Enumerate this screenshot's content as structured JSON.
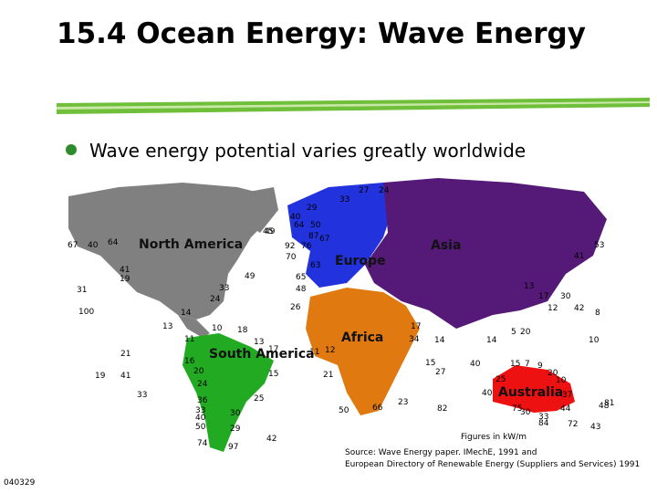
{
  "header": {
    "title": "15.4  Ocean Energy: Wave Energy"
  },
  "bullet": "Wave energy potential varies greatly worldwide",
  "map": {
    "regions": [
      "North America",
      "Europe",
      "Asia",
      "Africa",
      "South America",
      "Australia"
    ],
    "figures": [
      27,
      24,
      33,
      29,
      40,
      64,
      50,
      45,
      87,
      67,
      92,
      76,
      70,
      63,
      65,
      48,
      26,
      67,
      40,
      64,
      49,
      41,
      19,
      49,
      31,
      33,
      24,
      100,
      14,
      13,
      10,
      18,
      11,
      17,
      13,
      21,
      16,
      19,
      41,
      20,
      15,
      24,
      33,
      36,
      25,
      33,
      40,
      50,
      74,
      29,
      97,
      42,
      30,
      11,
      12,
      17,
      34,
      14,
      21,
      15,
      27,
      66,
      50,
      23,
      82,
      53,
      41,
      13,
      17,
      30,
      12,
      42,
      8,
      5,
      20,
      14,
      10,
      40,
      15,
      7,
      9,
      20,
      10,
      25,
      40,
      75,
      37,
      30,
      44,
      48,
      81,
      33,
      84,
      72,
      43
    ],
    "units_note": "Figures in kW/m"
  },
  "source": [
    "Source: Wave Energy paper. IMechE, 1991 and",
    "European Directory of Renewable Energy (Suppliers and Services) 1991"
  ],
  "slide_code": "040329"
}
